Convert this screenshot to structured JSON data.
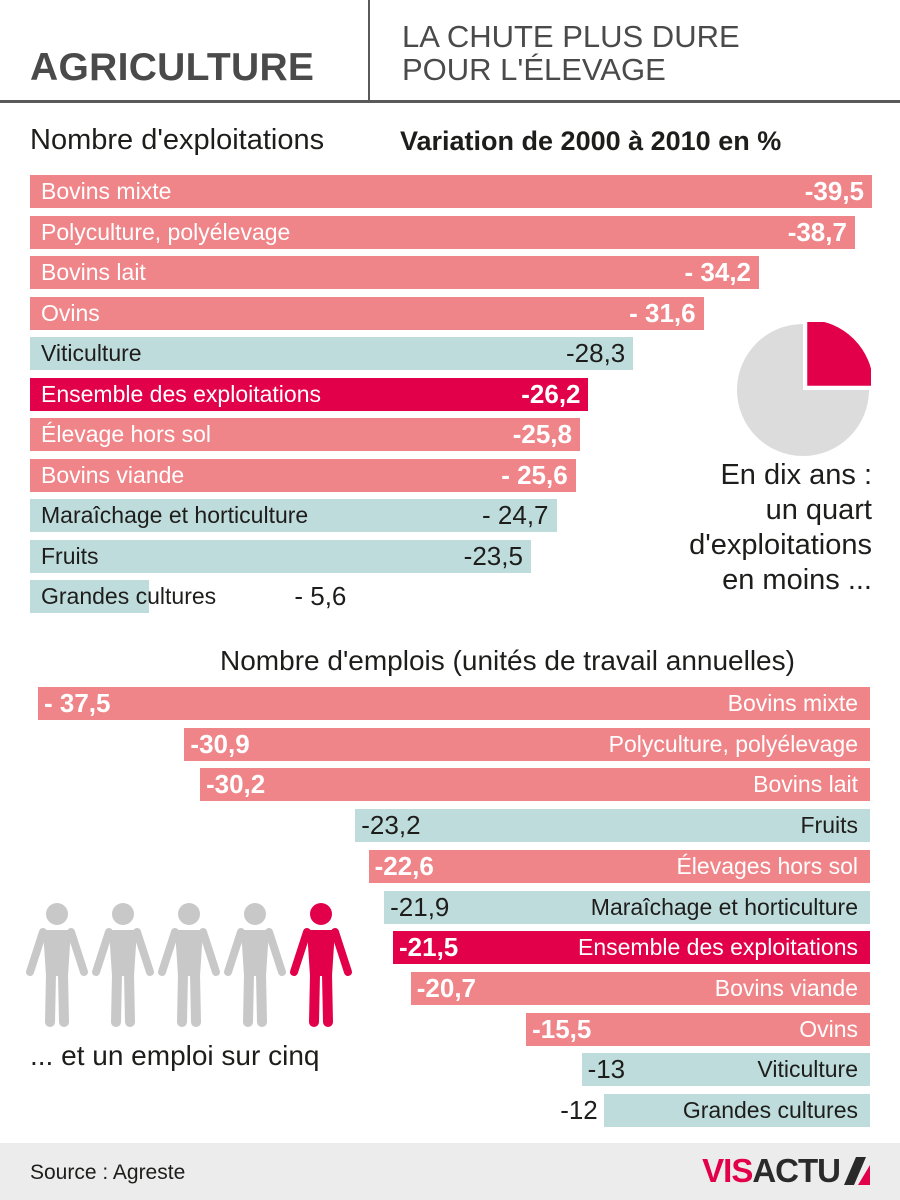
{
  "header": {
    "title": "AGRICULTURE",
    "subtitle_line1": "LA CHUTE PLUS DURE",
    "subtitle_line2": "POUR L'ÉLEVAGE"
  },
  "colors": {
    "breeding": "#f08589",
    "crops": "#bfdcdc",
    "total": "#e2004a",
    "pie_grey": "#dcdcdc",
    "person_grey": "#c8c8c8"
  },
  "chart_data": [
    {
      "type": "bar",
      "orientation": "horizontal",
      "title": "Nombre d'exploitations",
      "subtitle": "Variation de 2000 à 2010 en %",
      "categories": [
        "Bovins mixte",
        "Polyculture, polyélevage",
        "Bovins lait",
        "Ovins",
        "Viticulture",
        "Ensemble des exploitations",
        "Élevage hors sol",
        "Bovins viande",
        "Maraîchage et horticulture",
        "Fruits",
        "Grandes cultures"
      ],
      "values": [
        -39.5,
        -38.7,
        -34.2,
        -31.6,
        -28.3,
        -26.2,
        -25.8,
        -25.6,
        -24.7,
        -23.5,
        -5.6
      ],
      "value_labels": [
        "-39,5",
        "-38,7",
        "- 34,2",
        "- 31,6",
        "-28,3",
        "-26,2",
        "-25,8",
        "- 25,6",
        "- 24,7",
        "-23,5",
        "- 5,6"
      ],
      "groups": [
        "breeding",
        "breeding",
        "breeding",
        "breeding",
        "crops",
        "total",
        "breeding",
        "breeding",
        "crops",
        "crops",
        "crops"
      ],
      "xlim": [
        0,
        -39.5
      ]
    },
    {
      "type": "bar",
      "orientation": "horizontal",
      "title": "Nombre d'emplois (unités de travail annuelles)",
      "categories": [
        "Bovins mixte",
        "Polyculture, polyélevage",
        "Bovins lait",
        "Fruits",
        "Élevages hors sol",
        "Maraîchage et horticulture",
        "Ensemble des exploitations",
        "Bovins viande",
        "Ovins",
        "Viticulture",
        "Grandes cultures"
      ],
      "values": [
        -37.5,
        -30.9,
        -30.2,
        -23.2,
        -22.6,
        -21.9,
        -21.5,
        -20.7,
        -15.5,
        -13,
        -12
      ],
      "value_labels": [
        "- 37,5",
        "-30,9",
        "-30,2",
        "-23,2",
        "-22,6",
        "-21,9",
        "-21,5",
        "-20,7",
        "-15,5",
        "-13",
        "-12"
      ],
      "groups": [
        "breeding",
        "breeding",
        "breeding",
        "crops",
        "breeding",
        "crops",
        "total",
        "breeding",
        "breeding",
        "crops",
        "crops"
      ],
      "xlim": [
        0,
        -37.5
      ]
    }
  ],
  "pie": {
    "fraction": 0.25,
    "caption_lines": [
      "En dix ans :",
      "un quart",
      "d'exploitations",
      "en moins ..."
    ]
  },
  "people": {
    "total": 5,
    "highlighted": 1,
    "caption": "... et un emploi sur cinq"
  },
  "footer": {
    "source": "Source : Agreste",
    "brand_part1": "VIS",
    "brand_part2": "ACTU"
  }
}
